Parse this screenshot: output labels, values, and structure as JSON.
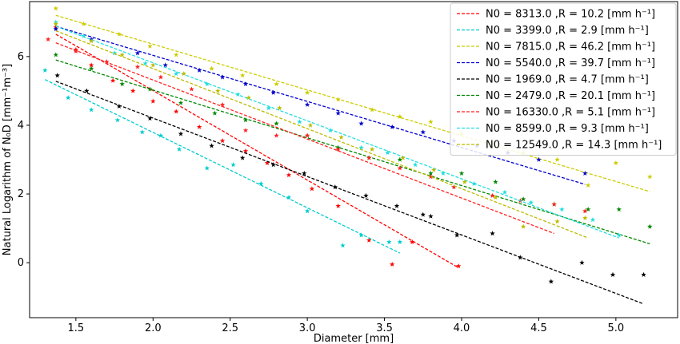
{
  "chart_data": {
    "type": "scatter",
    "xlabel": "Diameter [mm]",
    "ylabel": "Natural Logarithm of N₀D [mm⁻¹m⁻³]",
    "xlim": [
      1.2,
      5.4
    ],
    "ylim": [
      -1.6,
      7.6
    ],
    "xticks": [
      "1.5",
      "2.0",
      "2.5",
      "3.0",
      "3.5",
      "4.0",
      "4.5",
      "5.0"
    ],
    "xtick_values": [
      1.5,
      2.0,
      2.5,
      3.0,
      3.5,
      4.0,
      4.5,
      5.0
    ],
    "yticks": [
      "0",
      "2",
      "4",
      "6"
    ],
    "ytick_values": [
      0,
      2,
      4,
      6
    ],
    "legend_position": "top-right",
    "series": [
      {
        "name": "N0 = 8313.0 ,R = 10.2 [mm h⁻¹]",
        "color": "#ff0000",
        "fit": {
          "x": [
            1.37,
            3.97
          ],
          "y": [
            6.65,
            -0.12
          ]
        },
        "points": [
          [
            1.37,
            6.85
          ],
          [
            1.5,
            6.2
          ],
          [
            1.6,
            5.75
          ],
          [
            1.74,
            5.3
          ],
          [
            1.87,
            5.0
          ],
          [
            2.0,
            4.7
          ],
          [
            2.15,
            4.4
          ],
          [
            2.3,
            3.95
          ],
          [
            2.45,
            3.55
          ],
          [
            2.6,
            3.25
          ],
          [
            2.74,
            2.9
          ],
          [
            2.88,
            2.55
          ],
          [
            3.03,
            2.15
          ],
          [
            3.2,
            1.65
          ],
          [
            3.4,
            0.65
          ],
          [
            3.55,
            -0.05
          ],
          [
            3.68,
            0.6
          ],
          [
            3.98,
            -0.1
          ]
        ]
      },
      {
        "name": "N0 = 3399.0 ,R = 2.9 [mm h⁻¹]",
        "color": "#00cccc",
        "fit": {
          "x": [
            1.3,
            3.6
          ],
          "y": [
            5.33,
            0.28
          ]
        },
        "points": [
          [
            1.3,
            5.6
          ],
          [
            1.45,
            4.8
          ],
          [
            1.6,
            4.45
          ],
          [
            1.77,
            4.15
          ],
          [
            1.93,
            3.8
          ],
          [
            2.05,
            3.7
          ],
          [
            2.17,
            3.3
          ],
          [
            2.35,
            2.75
          ],
          [
            2.52,
            2.85
          ],
          [
            2.7,
            2.3
          ],
          [
            2.88,
            1.9
          ],
          [
            3.0,
            1.5
          ],
          [
            3.23,
            0.5
          ],
          [
            3.35,
            0.8
          ],
          [
            3.53,
            0.6
          ],
          [
            3.6,
            0.6
          ]
        ]
      },
      {
        "name": "N0 = 7815.0 ,R = 46.2 [mm h⁻¹]",
        "color": "#cccc00",
        "fit": {
          "x": [
            1.37,
            5.22
          ],
          "y": [
            7.2,
            2.07
          ]
        },
        "points": [
          [
            1.37,
            7.4
          ],
          [
            1.55,
            6.95
          ],
          [
            1.78,
            6.65
          ],
          [
            1.98,
            6.3
          ],
          [
            2.15,
            6.05
          ],
          [
            2.38,
            5.65
          ],
          [
            2.58,
            5.45
          ],
          [
            2.8,
            5.2
          ],
          [
            3.0,
            4.95
          ],
          [
            3.2,
            4.75
          ],
          [
            3.42,
            4.45
          ],
          [
            3.6,
            4.25
          ],
          [
            3.8,
            4.1
          ],
          [
            4.0,
            3.75
          ],
          [
            4.2,
            3.5
          ],
          [
            4.4,
            3.2
          ],
          [
            4.62,
            3.0
          ],
          [
            4.82,
            2.25
          ],
          [
            5.0,
            2.9
          ],
          [
            5.22,
            2.5
          ]
        ]
      },
      {
        "name": "N0 = 5540.0 ,R = 39.7 [mm h⁻¹]",
        "color": "#0000cc",
        "fit": {
          "x": [
            1.37,
            4.8
          ],
          "y": [
            6.88,
            2.28
          ]
        },
        "points": [
          [
            1.37,
            6.8
          ],
          [
            1.6,
            6.5
          ],
          [
            1.9,
            6.1
          ],
          [
            2.08,
            5.75
          ],
          [
            2.3,
            5.6
          ],
          [
            2.45,
            5.4
          ],
          [
            2.6,
            5.2
          ],
          [
            2.78,
            4.95
          ],
          [
            3.0,
            4.6
          ],
          [
            3.2,
            4.35
          ],
          [
            3.35,
            4.05
          ],
          [
            3.55,
            3.95
          ],
          [
            3.75,
            3.8
          ],
          [
            3.95,
            3.55
          ],
          [
            4.1,
            3.4
          ],
          [
            4.3,
            3.2
          ],
          [
            4.5,
            3.0
          ],
          [
            4.8,
            2.6
          ]
        ]
      },
      {
        "name": "N0 = 1969.0 ,R = 4.7 [mm h⁻¹]",
        "color": "#000000",
        "fit": {
          "x": [
            1.37,
            5.18
          ],
          "y": [
            5.28,
            -1.2
          ]
        },
        "points": [
          [
            1.38,
            5.45
          ],
          [
            1.57,
            5.0
          ],
          [
            1.78,
            4.55
          ],
          [
            1.98,
            4.2
          ],
          [
            2.18,
            3.75
          ],
          [
            2.38,
            3.4
          ],
          [
            2.58,
            3.05
          ],
          [
            2.78,
            2.85
          ],
          [
            2.98,
            2.6
          ],
          [
            3.18,
            2.2
          ],
          [
            3.38,
            1.95
          ],
          [
            3.58,
            1.65
          ],
          [
            3.75,
            1.4
          ],
          [
            3.8,
            1.35
          ],
          [
            3.97,
            0.8
          ],
          [
            4.2,
            0.85
          ],
          [
            4.38,
            0.15
          ],
          [
            4.58,
            -0.55
          ],
          [
            4.78,
            0.0
          ],
          [
            4.98,
            -0.35
          ],
          [
            5.18,
            -0.35
          ]
        ]
      },
      {
        "name": "N0 = 2479.0 ,R = 20.1 [mm h⁻¹]",
        "color": "#008800",
        "fit": {
          "x": [
            1.37,
            5.22
          ],
          "y": [
            5.9,
            0.55
          ]
        },
        "points": [
          [
            1.37,
            6.05
          ],
          [
            1.6,
            5.65
          ],
          [
            1.8,
            5.2
          ],
          [
            1.98,
            5.05
          ],
          [
            2.18,
            4.65
          ],
          [
            2.4,
            4.35
          ],
          [
            2.6,
            4.15
          ],
          [
            2.8,
            4.05
          ],
          [
            3.0,
            3.7
          ],
          [
            3.2,
            3.35
          ],
          [
            3.4,
            3.05
          ],
          [
            3.6,
            3.0
          ],
          [
            3.8,
            2.6
          ],
          [
            4.0,
            2.6
          ],
          [
            4.22,
            2.35
          ],
          [
            4.4,
            1.85
          ],
          [
            4.6,
            1.7
          ],
          [
            4.82,
            1.55
          ],
          [
            5.02,
            1.55
          ],
          [
            5.22,
            1.05
          ]
        ]
      },
      {
        "name": "N0 = 16330.0 ,R = 5.1 [mm h⁻¹]",
        "color": "#ff2222",
        "fit": {
          "x": [
            1.37,
            4.6
          ],
          "y": [
            6.4,
            0.85
          ]
        },
        "points": [
          [
            1.32,
            6.5
          ],
          [
            1.5,
            6.15
          ],
          [
            1.7,
            5.85
          ],
          [
            1.9,
            5.7
          ],
          [
            2.05,
            5.4
          ],
          [
            2.25,
            5.05
          ],
          [
            2.45,
            4.6
          ],
          [
            2.6,
            3.85
          ],
          [
            2.8,
            3.7
          ],
          [
            3.0,
            3.7
          ],
          [
            3.2,
            3.3
          ],
          [
            3.4,
            3.05
          ],
          [
            3.6,
            2.75
          ],
          [
            3.8,
            2.5
          ],
          [
            3.95,
            2.2
          ],
          [
            4.2,
            1.95
          ],
          [
            4.38,
            1.8
          ],
          [
            4.6,
            1.7
          ],
          [
            4.8,
            1.5
          ]
        ]
      },
      {
        "name": "N0 = 8599.0 ,R = 9.3 [mm h⁻¹]",
        "color": "#22dddd",
        "fit": {
          "x": [
            1.37,
            5.02
          ],
          "y": [
            6.88,
            0.72
          ]
        },
        "points": [
          [
            1.37,
            7.0
          ],
          [
            1.55,
            6.6
          ],
          [
            1.75,
            6.1
          ],
          [
            1.95,
            5.8
          ],
          [
            2.15,
            5.5
          ],
          [
            2.35,
            5.2
          ],
          [
            2.55,
            4.9
          ],
          [
            2.75,
            4.5
          ],
          [
            2.95,
            4.1
          ],
          [
            3.15,
            3.85
          ],
          [
            3.35,
            3.35
          ],
          [
            3.52,
            3.2
          ],
          [
            3.7,
            2.85
          ],
          [
            3.88,
            2.6
          ],
          [
            4.08,
            2.3
          ],
          [
            4.28,
            2.05
          ],
          [
            4.45,
            1.75
          ],
          [
            4.65,
            1.55
          ],
          [
            4.85,
            1.25
          ],
          [
            5.02,
            0.8
          ]
        ]
      },
      {
        "name": "N0 = 12549.0 ,R = 14.3 [mm h⁻¹]",
        "color": "#bbbb00",
        "fit": {
          "x": [
            1.37,
            4.82
          ],
          "y": [
            6.75,
            0.72
          ]
        },
        "points": [
          [
            1.37,
            6.95
          ],
          [
            1.6,
            6.45
          ],
          [
            1.8,
            6.05
          ],
          [
            2.0,
            5.75
          ],
          [
            2.2,
            5.5
          ],
          [
            2.42,
            5.0
          ],
          [
            2.62,
            4.8
          ],
          [
            2.82,
            4.5
          ],
          [
            3.02,
            4.0
          ],
          [
            3.22,
            3.65
          ],
          [
            3.42,
            3.3
          ],
          [
            3.62,
            3.05
          ],
          [
            3.82,
            2.7
          ],
          [
            4.02,
            2.35
          ],
          [
            4.22,
            1.9
          ],
          [
            4.4,
            1.05
          ],
          [
            4.62,
            1.2
          ],
          [
            4.8,
            1.3
          ]
        ]
      }
    ]
  }
}
